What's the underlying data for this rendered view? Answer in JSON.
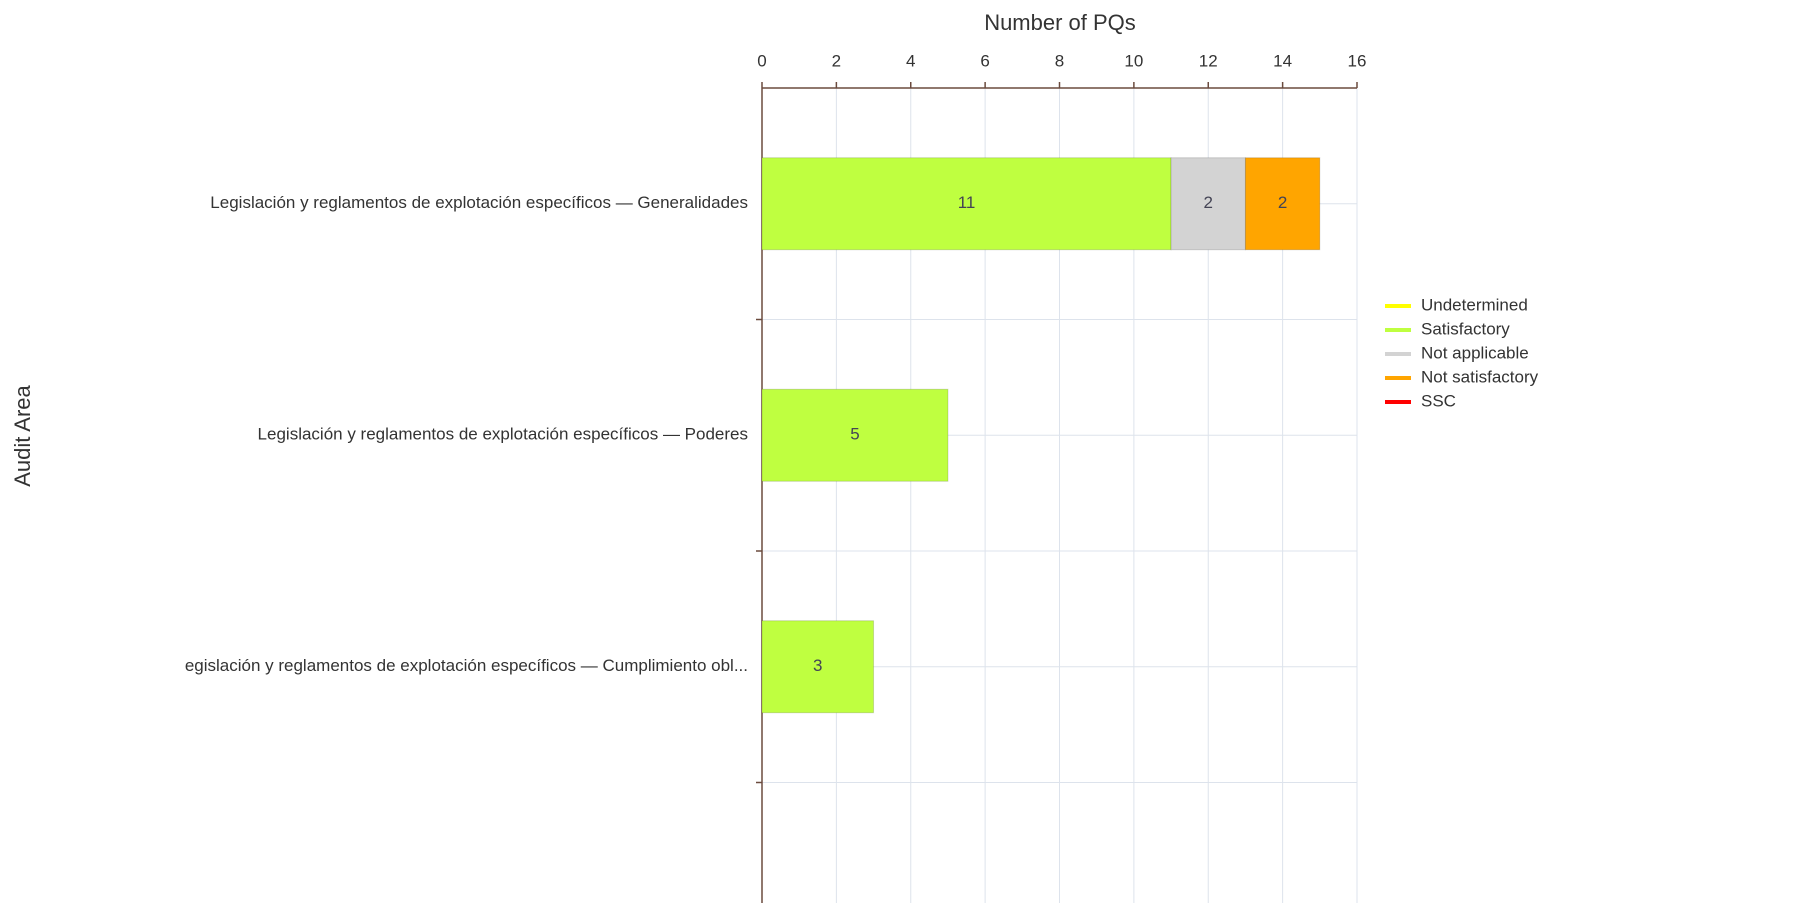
{
  "chart_data": {
    "type": "stacked_bar_horizontal",
    "x_label": "Number of PQs",
    "y_label": "Audit Area",
    "categories": [
      "Legislación y reglamentos de explotación específicos — Generalidades",
      "Legislación y reglamentos de explotación específicos — Poderes",
      "egislación y reglamentos de explotación específicos — Cumplimiento obl..."
    ],
    "series": [
      {
        "name": "Undetermined",
        "color": "#ffff00",
        "values": [
          0,
          0,
          0
        ]
      },
      {
        "name": "Satisfactory",
        "color": "#bfff40",
        "values": [
          11,
          5,
          3
        ]
      },
      {
        "name": "Not applicable",
        "color": "#d3d3d3",
        "values": [
          2,
          0,
          0
        ]
      },
      {
        "name": "Not satisfactory",
        "color": "#ffa500",
        "values": [
          2,
          0,
          0
        ]
      },
      {
        "name": "SSC",
        "color": "#ff0000",
        "values": [
          0,
          0,
          0
        ]
      }
    ],
    "xlim": [
      0,
      16
    ],
    "xticks": [
      0,
      2,
      4,
      6,
      8,
      10,
      12,
      14,
      16
    ],
    "grid": true,
    "legend": "right"
  }
}
